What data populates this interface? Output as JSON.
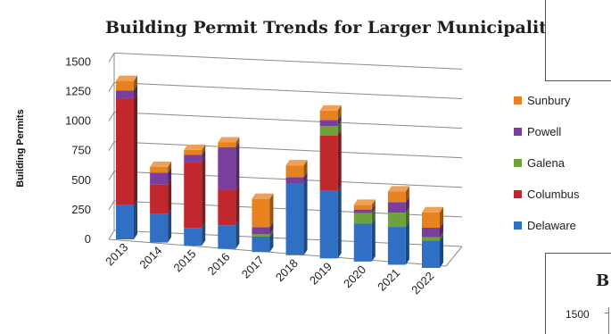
{
  "chart_data": {
    "type": "bar",
    "stacked": true,
    "three_d": true,
    "title": "Building Permit Trends for Larger Municipalities",
    "ylabel": "Building Permits",
    "xlabel": "",
    "ylim": [
      0,
      1500
    ],
    "yticks": [
      "0",
      "250",
      "500",
      "750",
      "1000",
      "1250",
      "1500"
    ],
    "grid": true,
    "legend_position": "right",
    "categories": [
      "2013",
      "2014",
      "2015",
      "2016",
      "2017",
      "2018",
      "2019",
      "2020",
      "2021",
      "2022"
    ],
    "series": [
      {
        "name": "Delaware",
        "color": "#2f6fc4",
        "values": [
          290,
          240,
          150,
          200,
          130,
          610,
          570,
          320,
          320,
          230
        ]
      },
      {
        "name": "Columbus",
        "color": "#c0282d",
        "values": [
          900,
          250,
          560,
          300,
          0,
          0,
          470,
          0,
          0,
          0
        ]
      },
      {
        "name": "Galena",
        "color": "#6fa33a",
        "values": [
          0,
          0,
          0,
          0,
          20,
          0,
          80,
          90,
          120,
          30
        ]
      },
      {
        "name": "Powell",
        "color": "#7a3f9d",
        "values": [
          70,
          100,
          60,
          360,
          60,
          50,
          50,
          30,
          90,
          80
        ]
      },
      {
        "name": "Sunbury",
        "color": "#e8821e",
        "values": [
          80,
          50,
          40,
          40,
          240,
          100,
          80,
          40,
          90,
          130
        ]
      }
    ]
  },
  "legend_order": [
    "Sunbury",
    "Powell",
    "Galena",
    "Columbus",
    "Delaware"
  ],
  "overlay": {
    "title_fragment": "B",
    "tick_label": "1500"
  }
}
